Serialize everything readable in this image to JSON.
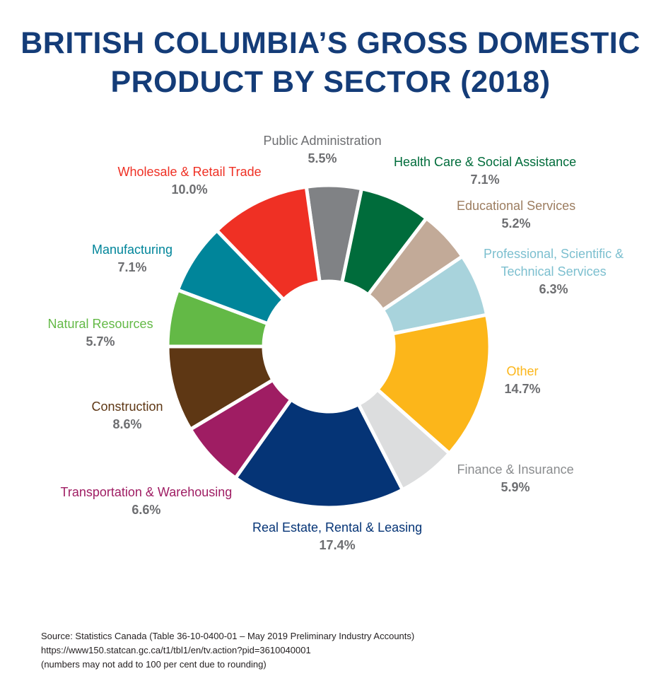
{
  "header": {
    "title_line1": "BRITISH COLUMBIA’S GROSS DOMESTIC",
    "title_line2": "PRODUCT BY SECTOR (2018)"
  },
  "chart_data": {
    "type": "pie",
    "variant": "donut",
    "title": "BRITISH COLUMBIA’S GROSS DOMESTIC PRODUCT BY SECTOR (2018)",
    "slices": [
      {
        "label": "Public Administration",
        "value": 5.5,
        "value_label": "5.5%",
        "color": "#808285",
        "label_color": "#6d6e71"
      },
      {
        "label": "Health Care & Social Assistance",
        "value": 7.1,
        "value_label": "7.1%",
        "color": "#006c3b",
        "label_color": "#006c3b"
      },
      {
        "label": "Educational Services",
        "value": 5.2,
        "value_label": "5.2%",
        "color": "#c2aa98",
        "label_color": "#9c7d60"
      },
      {
        "label_lines": [
          "Professional, Scientific &",
          "Technical Services"
        ],
        "value": 6.3,
        "value_label": "6.3%",
        "color": "#a8d3dc",
        "label_color": "#7cbfcf"
      },
      {
        "label": "Other",
        "value": 14.7,
        "value_label": "14.7%",
        "color": "#fcb61a",
        "label_color": "#fcb61a"
      },
      {
        "label": "Finance & Insurance",
        "value": 5.9,
        "value_label": "5.9%",
        "color": "#dcddde",
        "label_color": "#8a8c8e"
      },
      {
        "label": "Real Estate, Rental & Leasing",
        "value": 17.4,
        "value_label": "17.4%",
        "color": "#053476",
        "label_color": "#053476"
      },
      {
        "label": "Transportation & Warehousing",
        "value": 6.6,
        "value_label": "6.6%",
        "color": "#9f1d63",
        "label_color": "#9f1d63"
      },
      {
        "label": "Construction",
        "value": 8.6,
        "value_label": "8.6%",
        "color": "#5e3714",
        "label_color": "#5e3714"
      },
      {
        "label": "Natural Resources",
        "value": 5.7,
        "value_label": "5.7%",
        "color": "#63b946",
        "label_color": "#63b946"
      },
      {
        "label": "Manufacturing",
        "value": 7.1,
        "value_label": "7.1%",
        "color": "#00859a",
        "label_color": "#00859a"
      },
      {
        "label": "Wholesale & Retail Trade",
        "value": 10.0,
        "value_label": "10.0%",
        "color": "#ef3024",
        "label_color": "#ef3024"
      }
    ]
  },
  "footer": {
    "source_line1": "Source: Statistics Canada (Table 36-10-0400-01 – May 2019 Preliminary Industry Accounts)",
    "source_line2": "https://www150.statcan.gc.ca/t1/tbl1/en/tv.action?pid=3610040001",
    "source_line3": "(numbers may not add to 100 per cent due to rounding)"
  }
}
